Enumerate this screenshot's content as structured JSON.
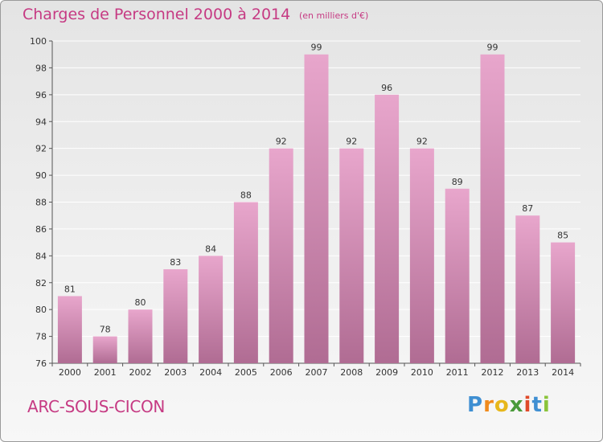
{
  "header": {
    "title": "Charges de Personnel 2000 à 2014",
    "subtitle": "(en milliers d'€)"
  },
  "footer": {
    "place": "ARC-SOUS-CICON",
    "logo_text": "Proxiti"
  },
  "colors": {
    "title": "#c63a83",
    "bar_top": "#e8a6cc",
    "bar_bottom": "#b06c93",
    "grid": "#ffffff"
  },
  "chart_data": {
    "type": "bar",
    "title": "Charges de Personnel 2000 à 2014",
    "subtitle": "(en milliers d'€)",
    "xlabel": "",
    "ylabel": "",
    "categories": [
      "2000",
      "2001",
      "2002",
      "2003",
      "2004",
      "2005",
      "2006",
      "2007",
      "2008",
      "2009",
      "2010",
      "2011",
      "2012",
      "2013",
      "2014"
    ],
    "values": [
      81,
      78,
      80,
      83,
      84,
      88,
      92,
      99,
      92,
      96,
      92,
      89,
      99,
      87,
      85
    ],
    "ylim": [
      76,
      100
    ],
    "yticks": [
      76,
      78,
      80,
      82,
      84,
      86,
      88,
      90,
      92,
      94,
      96,
      98,
      100
    ],
    "grid": true,
    "data_labels": true
  }
}
